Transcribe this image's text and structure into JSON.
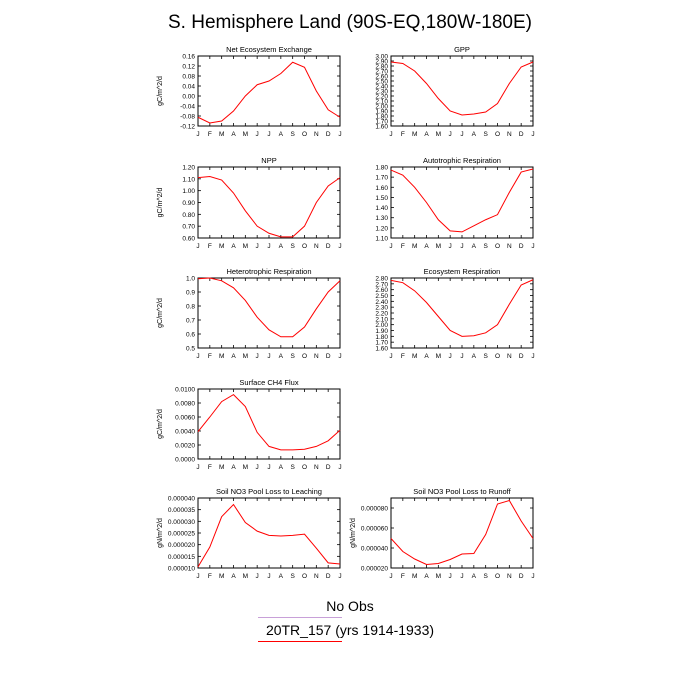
{
  "title": "S. Hemisphere Land (90S-EQ,180W-180E)",
  "legend": [
    {
      "label": "No Obs",
      "color": "#c8a0d8"
    },
    {
      "label": "20TR_157 (yrs 1914-1933)",
      "color": "#ff0000"
    }
  ],
  "colors": {
    "series": "#ff0000"
  },
  "chart_data": [
    {
      "type": "line",
      "title": "Net Ecosystem Exchange",
      "ylabel": "gC/m^2/d",
      "x": [
        "J",
        "F",
        "M",
        "A",
        "M",
        "J",
        "J",
        "A",
        "S",
        "O",
        "N",
        "D",
        "J"
      ],
      "ylim": [
        -0.12,
        0.16
      ],
      "yticks": [
        "-0.12",
        "-0.08",
        "-0.04",
        "0.00",
        "0.04",
        "0.08",
        "0.12",
        "0.16"
      ],
      "ytick_values": [
        -0.12,
        -0.08,
        -0.04,
        0.0,
        0.04,
        0.08,
        0.12,
        0.16
      ],
      "values": [
        -0.085,
        -0.108,
        -0.1,
        -0.06,
        0.0,
        0.045,
        0.06,
        0.09,
        0.135,
        0.115,
        0.02,
        -0.055,
        -0.085
      ]
    },
    {
      "type": "line",
      "title": "GPP",
      "ylabel": "",
      "x": [
        "J",
        "F",
        "M",
        "A",
        "M",
        "J",
        "J",
        "A",
        "S",
        "O",
        "N",
        "D",
        "J"
      ],
      "ylim": [
        1.6,
        3.0
      ],
      "yticks": [
        "1.60",
        "1.70",
        "1.80",
        "1.90",
        "2.00",
        "2.10",
        "2.20",
        "2.30",
        "2.40",
        "2.50",
        "2.60",
        "2.70",
        "2.80",
        "2.90",
        "3.00"
      ],
      "ytick_values": [
        1.6,
        1.7,
        1.8,
        1.9,
        2.0,
        2.1,
        2.2,
        2.3,
        2.4,
        2.5,
        2.6,
        2.7,
        2.8,
        2.9,
        3.0
      ],
      "values": [
        2.88,
        2.85,
        2.7,
        2.45,
        2.15,
        1.9,
        1.82,
        1.84,
        1.88,
        2.05,
        2.45,
        2.78,
        2.88
      ]
    },
    {
      "type": "line",
      "title": "NPP",
      "ylabel": "gC/m^2/d",
      "x": [
        "J",
        "F",
        "M",
        "A",
        "M",
        "J",
        "J",
        "A",
        "S",
        "O",
        "N",
        "D",
        "J"
      ],
      "ylim": [
        0.6,
        1.2
      ],
      "yticks": [
        "0.60",
        "0.70",
        "0.80",
        "0.90",
        "1.00",
        "1.10",
        "1.20"
      ],
      "ytick_values": [
        0.6,
        0.7,
        0.8,
        0.9,
        1.0,
        1.1,
        1.2
      ],
      "values": [
        1.11,
        1.12,
        1.09,
        0.98,
        0.83,
        0.7,
        0.64,
        0.61,
        0.61,
        0.7,
        0.9,
        1.04,
        1.11
      ]
    },
    {
      "type": "line",
      "title": "Autotrophic Respiration",
      "ylabel": "",
      "x": [
        "J",
        "F",
        "M",
        "A",
        "M",
        "J",
        "J",
        "A",
        "S",
        "O",
        "N",
        "D",
        "J"
      ],
      "ylim": [
        1.1,
        1.8
      ],
      "yticks": [
        "1.10",
        "1.20",
        "1.30",
        "1.40",
        "1.50",
        "1.60",
        "1.70",
        "1.80"
      ],
      "ytick_values": [
        1.1,
        1.2,
        1.3,
        1.4,
        1.5,
        1.6,
        1.7,
        1.8
      ],
      "values": [
        1.77,
        1.72,
        1.6,
        1.45,
        1.28,
        1.17,
        1.16,
        1.22,
        1.28,
        1.33,
        1.55,
        1.75,
        1.78
      ]
    },
    {
      "type": "line",
      "title": "Heterotrophic Respiration",
      "ylabel": "gC/m^2/d",
      "x": [
        "J",
        "F",
        "M",
        "A",
        "M",
        "J",
        "J",
        "A",
        "S",
        "O",
        "N",
        "D",
        "J"
      ],
      "ylim": [
        0.5,
        1.0
      ],
      "yticks": [
        "0.5",
        "0.6",
        "0.7",
        "0.8",
        "0.9",
        "1.0"
      ],
      "ytick_values": [
        0.5,
        0.6,
        0.7,
        0.8,
        0.9,
        1.0
      ],
      "values": [
        0.995,
        1.0,
        0.98,
        0.93,
        0.84,
        0.72,
        0.63,
        0.58,
        0.58,
        0.65,
        0.78,
        0.9,
        0.98
      ]
    },
    {
      "type": "line",
      "title": "Ecosystem Respiration",
      "ylabel": "",
      "x": [
        "J",
        "F",
        "M",
        "A",
        "M",
        "J",
        "J",
        "A",
        "S",
        "O",
        "N",
        "D",
        "J"
      ],
      "ylim": [
        1.6,
        2.8
      ],
      "yticks": [
        "1.60",
        "1.70",
        "1.80",
        "1.90",
        "2.00",
        "2.10",
        "2.20",
        "2.30",
        "2.40",
        "2.50",
        "2.60",
        "2.70",
        "2.80"
      ],
      "ytick_values": [
        1.6,
        1.7,
        1.8,
        1.9,
        2.0,
        2.1,
        2.2,
        2.3,
        2.4,
        2.5,
        2.6,
        2.7,
        2.8
      ],
      "values": [
        2.76,
        2.72,
        2.58,
        2.38,
        2.14,
        1.9,
        1.8,
        1.81,
        1.86,
        2.0,
        2.35,
        2.68,
        2.77
      ]
    },
    {
      "type": "line",
      "title": "Surface CH4 Flux",
      "ylabel": "gC/m^2/d",
      "x": [
        "J",
        "F",
        "M",
        "A",
        "M",
        "J",
        "J",
        "A",
        "S",
        "O",
        "N",
        "D",
        "J"
      ],
      "ylim": [
        0.0,
        0.01
      ],
      "yticks": [
        "0.0000",
        "0.0020",
        "0.0040",
        "0.0060",
        "0.0080",
        "0.0100"
      ],
      "ytick_values": [
        0.0,
        0.002,
        0.004,
        0.006,
        0.008,
        0.01
      ],
      "values": [
        0.0039,
        0.006,
        0.0082,
        0.0092,
        0.0075,
        0.0038,
        0.0018,
        0.0013,
        0.0013,
        0.0014,
        0.0018,
        0.0026,
        0.0041
      ]
    },
    {
      "type": "line",
      "title": "Soil NO3 Pool Loss to Leaching",
      "ylabel": "gN/m^2/d",
      "x": [
        "J",
        "F",
        "M",
        "A",
        "M",
        "J",
        "J",
        "A",
        "S",
        "O",
        "N",
        "D",
        "J"
      ],
      "ylim": [
        1e-05,
        4e-05
      ],
      "yticks": [
        "0.000010",
        "0.000015",
        "0.000020",
        "0.000025",
        "0.000030",
        "0.000035",
        "0.000040"
      ],
      "ytick_values": [
        1e-05,
        1.5e-05,
        2e-05,
        2.5e-05,
        3e-05,
        3.5e-05,
        4e-05
      ],
      "values": [
        1.05e-05,
        1.9e-05,
        3.2e-05,
        3.72e-05,
        2.95e-05,
        2.58e-05,
        2.4e-05,
        2.37e-05,
        2.4e-05,
        2.45e-05,
        1.85e-05,
        1.22e-05,
        1.17e-05
      ]
    },
    {
      "type": "line",
      "title": "Soil NO3 Pool Loss to Runoff",
      "ylabel": "gN/m^2/d",
      "x": [
        "J",
        "F",
        "M",
        "A",
        "M",
        "J",
        "J",
        "A",
        "S",
        "O",
        "N",
        "D",
        "J"
      ],
      "ylim": [
        2e-05,
        9e-05
      ],
      "yticks": [
        "0.000020",
        "0.000040",
        "0.000060",
        "0.000080"
      ],
      "ytick_values": [
        2e-05,
        4e-05,
        6e-05,
        8e-05
      ],
      "values": [
        4.95e-05,
        3.65e-05,
        2.9e-05,
        2.35e-05,
        2.45e-05,
        2.85e-05,
        3.4e-05,
        3.45e-05,
        5.35e-05,
        8.4e-05,
        8.75e-05,
        6.7e-05,
        4.95e-05
      ]
    }
  ]
}
